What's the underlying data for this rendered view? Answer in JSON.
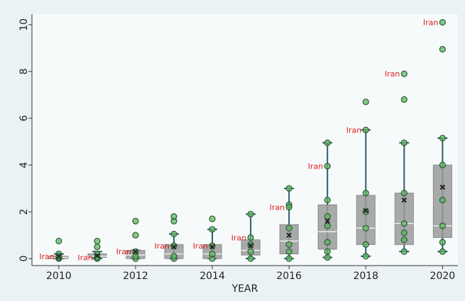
{
  "chart_data": {
    "type": "boxplot",
    "x_label": "YEAR",
    "annotation_label": "Iran",
    "xlim": [
      2009.3,
      2020.4
    ],
    "xticks": [
      2010,
      2012,
      2014,
      2016,
      2018,
      2020
    ],
    "ylim": [
      -0.3,
      10.45
    ],
    "yticks": [
      0,
      2,
      4,
      6,
      8,
      10
    ],
    "box_color": "#9a9a9a",
    "whisker_color": "#2f5b6f",
    "point_color": "#5cb85c",
    "label_color": "#e02020",
    "boxes": [
      {
        "x": 2010,
        "min": 0,
        "q1": 0,
        "median": 0.05,
        "q3": 0.1,
        "max": 0.2,
        "mean": 0.1,
        "iran": 0.1,
        "points": [
          0,
          0.05,
          0.2,
          0.75
        ]
      },
      {
        "x": 2011,
        "min": 0,
        "q1": 0.05,
        "median": 0.1,
        "q3": 0.2,
        "max": 0.3,
        "mean": 0.12,
        "iran": 0.05,
        "points": [
          0,
          0.2,
          0.5,
          0.75
        ]
      },
      {
        "x": 2012,
        "min": 0,
        "q1": 0,
        "median": 0.15,
        "q3": 0.35,
        "max": 0.35,
        "mean": 0.3,
        "iran": 0.3,
        "points": [
          0,
          0.1,
          1.0,
          1.6
        ]
      },
      {
        "x": 2013,
        "min": 0,
        "q1": 0,
        "median": 0.2,
        "q3": 0.6,
        "max": 1.05,
        "mean": 0.5,
        "iran": 0.55,
        "points": [
          0,
          0.1,
          1.05,
          1.6,
          1.8
        ]
      },
      {
        "x": 2014,
        "min": 0,
        "q1": 0,
        "median": 0.2,
        "q3": 0.6,
        "max": 1.25,
        "mean": 0.5,
        "iran": 0.55,
        "points": [
          0,
          0.2,
          1.25,
          1.7
        ]
      },
      {
        "x": 2015,
        "min": 0,
        "q1": 0.15,
        "median": 0.35,
        "q3": 0.8,
        "max": 1.9,
        "mean": 0.55,
        "iran": 0.9,
        "points": [
          0,
          0.3,
          0.6,
          1.9
        ]
      },
      {
        "x": 2016,
        "min": 0,
        "q1": 0.2,
        "median": 0.75,
        "q3": 1.45,
        "max": 3.0,
        "mean": 1.0,
        "iran": 2.2,
        "points": [
          0,
          0.3,
          0.6,
          1.3,
          2.3,
          3.0
        ]
      },
      {
        "x": 2017,
        "min": 0.05,
        "q1": 0.4,
        "median": 1.15,
        "q3": 2.3,
        "max": 4.95,
        "mean": 1.6,
        "iran": 3.95,
        "points": [
          0.05,
          0.3,
          0.7,
          1.4,
          1.8,
          2.5,
          4.95
        ]
      },
      {
        "x": 2018,
        "min": 0.1,
        "q1": 0.6,
        "median": 1.3,
        "q3": 2.7,
        "max": 5.5,
        "mean": 2.05,
        "iran": 5.5,
        "points": [
          0.1,
          0.6,
          1.3,
          2.0,
          2.8,
          6.7
        ]
      },
      {
        "x": 2019,
        "min": 0.3,
        "q1": 0.6,
        "median": 1.5,
        "q3": 2.8,
        "max": 4.95,
        "mean": 2.5,
        "iran": 7.9,
        "points": [
          0.3,
          0.8,
          1.1,
          1.5,
          2.8,
          4.95,
          6.8
        ]
      },
      {
        "x": 2020,
        "min": 0.3,
        "q1": 0.9,
        "median": 1.4,
        "q3": 4.0,
        "max": 5.15,
        "mean": 3.05,
        "iran": 10.1,
        "points": [
          0.3,
          0.7,
          1.4,
          2.5,
          4.0,
          5.15,
          8.95
        ]
      }
    ]
  }
}
